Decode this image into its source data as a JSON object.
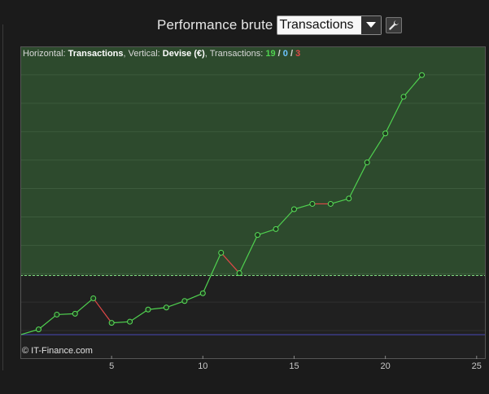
{
  "header": {
    "title": "Performance brute",
    "select_value": "Transactions"
  },
  "info": {
    "horizontal_label": "Horizontal: ",
    "horizontal_value": "Transactions",
    "vertical_label": ", Vertical: ",
    "vertical_value": "Devise (€)",
    "transactions_label": ", Transactions: ",
    "winning": "19",
    "sep1": " / ",
    "neutral": "0",
    "sep2": " / ",
    "losing": "3"
  },
  "credit": "© IT-Finance.com",
  "chart_data": {
    "type": "line",
    "x": [
      0,
      1,
      2,
      3,
      4,
      5,
      6,
      7,
      8,
      9,
      10,
      11,
      12,
      13,
      14,
      15,
      16,
      17,
      18,
      19,
      20,
      21,
      22
    ],
    "y": [
      0,
      0.18,
      0.68,
      0.71,
      1.23,
      0.4,
      0.44,
      0.85,
      0.92,
      1.14,
      1.4,
      2.77,
      2.08,
      3.37,
      3.57,
      4.24,
      4.42,
      4.42,
      4.6,
      5.82,
      6.8,
      8.04,
      8.77
    ],
    "x_ticks": [
      5,
      10,
      15,
      20,
      25
    ],
    "xlim": [
      0,
      25.5
    ],
    "ylim": [
      -0.82,
      9.74
    ],
    "winning_color": "#4fd14f",
    "losing_color": "#e04848",
    "neutral_color": "#6cc4ff",
    "positive_zone_color": "#2d4a2d",
    "baseline_color": "#4a4ab8",
    "grid": true
  }
}
